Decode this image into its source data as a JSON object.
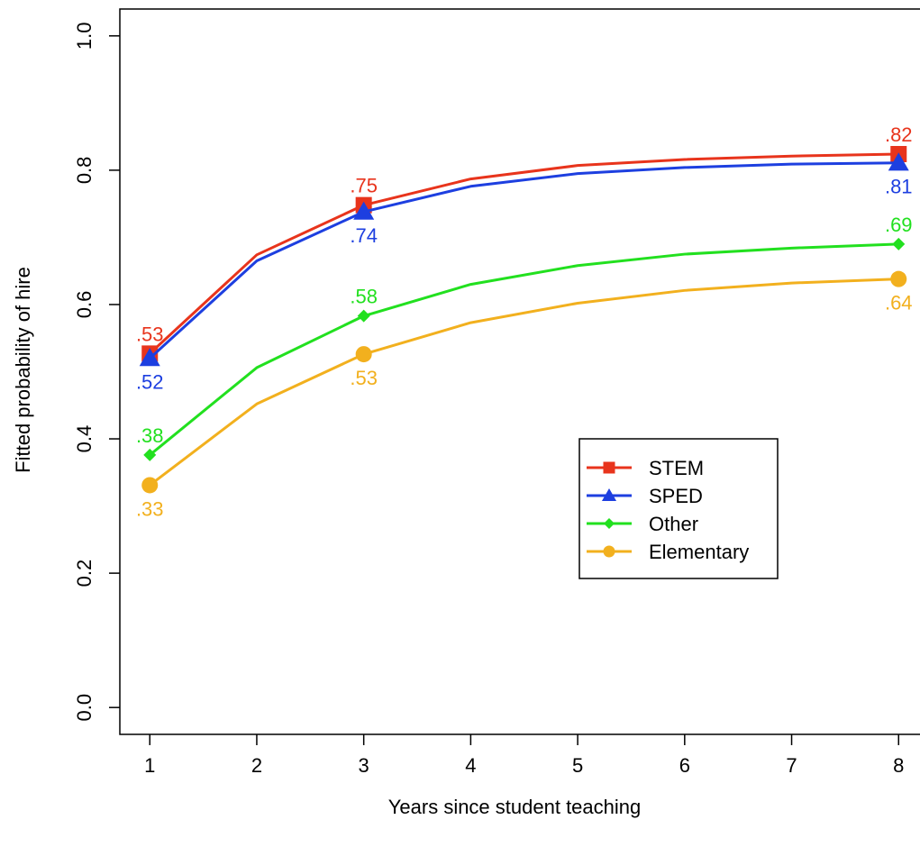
{
  "chart_data": {
    "type": "line",
    "title": "",
    "xlabel": "Years since student teaching",
    "ylabel": "Fitted probability of hire",
    "x": [
      1,
      2,
      3,
      4,
      5,
      6,
      7,
      8
    ],
    "xlim": [
      0.72,
      8.2
    ],
    "ylim": [
      -0.04,
      1.04
    ],
    "xticks": [
      "1",
      "2",
      "3",
      "4",
      "5",
      "6",
      "7",
      "8"
    ],
    "yticks": [
      "0.0",
      "0.2",
      "0.4",
      "0.6",
      "0.8",
      "1.0"
    ],
    "grid": false,
    "legend_position": "center-right",
    "series": [
      {
        "name": "STEM",
        "color": "#e8341c",
        "marker": "square",
        "values": [
          0.527,
          0.674,
          0.748,
          0.787,
          0.807,
          0.816,
          0.821,
          0.824
        ],
        "labels": [
          {
            "x": 1,
            "text": ".53",
            "pos": "above"
          },
          {
            "x": 3,
            "text": ".75",
            "pos": "above"
          },
          {
            "x": 8,
            "text": ".82",
            "pos": "above"
          }
        ]
      },
      {
        "name": "SPED",
        "color": "#1d3fe0",
        "marker": "triangle",
        "values": [
          0.52,
          0.665,
          0.738,
          0.776,
          0.795,
          0.804,
          0.809,
          0.811
        ],
        "labels": [
          {
            "x": 1,
            "text": ".52",
            "pos": "below"
          },
          {
            "x": 3,
            "text": ".74",
            "pos": "below"
          },
          {
            "x": 8,
            "text": ".81",
            "pos": "below"
          }
        ]
      },
      {
        "name": "Other",
        "color": "#22e01f",
        "marker": "diamond",
        "values": [
          0.376,
          0.506,
          0.583,
          0.63,
          0.658,
          0.675,
          0.684,
          0.69
        ],
        "labels": [
          {
            "x": 1,
            "text": ".38",
            "pos": "above"
          },
          {
            "x": 3,
            "text": ".58",
            "pos": "above"
          },
          {
            "x": 8,
            "text": ".69",
            "pos": "above"
          }
        ]
      },
      {
        "name": "Elementary",
        "color": "#f2b01e",
        "marker": "circle",
        "values": [
          0.331,
          0.452,
          0.526,
          0.573,
          0.602,
          0.621,
          0.632,
          0.638
        ],
        "labels": [
          {
            "x": 1,
            "text": ".33",
            "pos": "below"
          },
          {
            "x": 3,
            "text": ".53",
            "pos": "below"
          },
          {
            "x": 8,
            "text": ".64",
            "pos": "below"
          }
        ]
      }
    ]
  }
}
